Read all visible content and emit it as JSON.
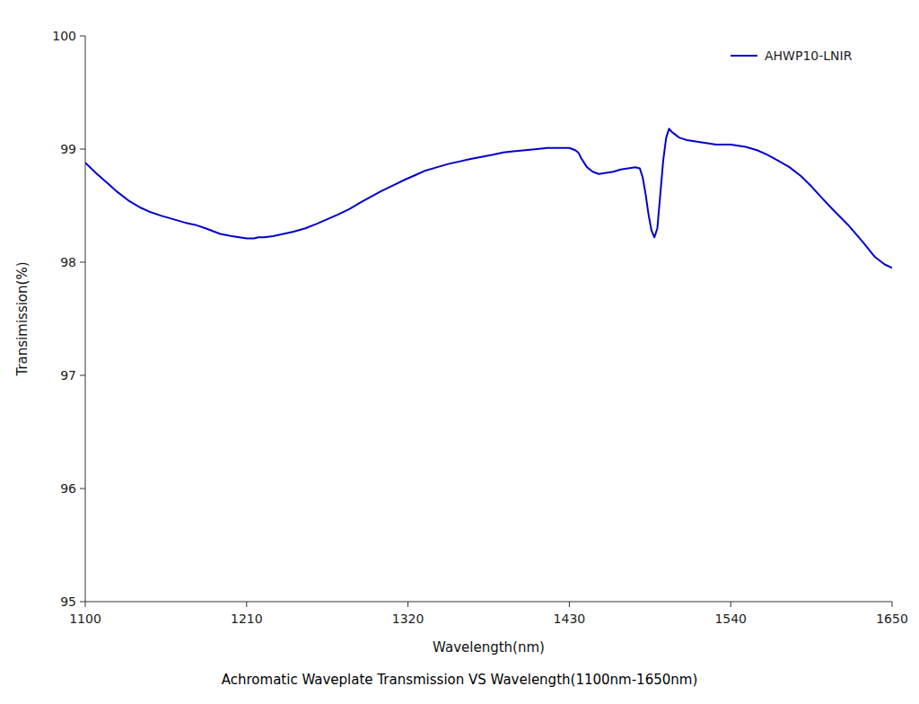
{
  "chart_data": {
    "type": "line",
    "title": "Achromatic Waveplate Transmission VS Wavelength(1100nm-1650nm)",
    "xlabel": "Wavelength(nm)",
    "ylabel": "Transimission(%)",
    "x": [
      1100,
      1108,
      1115,
      1122,
      1130,
      1138,
      1145,
      1152,
      1160,
      1168,
      1175,
      1182,
      1188,
      1192,
      1196,
      1200,
      1205,
      1210,
      1215,
      1218,
      1222,
      1228,
      1235,
      1242,
      1250,
      1258,
      1265,
      1272,
      1280,
      1288,
      1295,
      1302,
      1310,
      1318,
      1325,
      1332,
      1340,
      1348,
      1355,
      1362,
      1370,
      1378,
      1385,
      1392,
      1400,
      1408,
      1415,
      1420,
      1425,
      1428,
      1430,
      1432,
      1434,
      1435,
      1436,
      1437,
      1438,
      1440,
      1442,
      1444,
      1446,
      1448,
      1450,
      1455,
      1460,
      1465,
      1470,
      1475,
      1478,
      1480,
      1482,
      1484,
      1486,
      1488,
      1490,
      1492,
      1494,
      1496,
      1498,
      1500,
      1505,
      1510,
      1515,
      1520,
      1525,
      1530,
      1535,
      1540,
      1545,
      1550,
      1558,
      1565,
      1572,
      1580,
      1588,
      1595,
      1602,
      1610,
      1620,
      1630,
      1638,
      1645,
      1650
    ],
    "series": [
      {
        "name": "AHWP10-LNIR",
        "color": "#0000CC",
        "values": [
          98.88,
          98.78,
          98.7,
          98.62,
          98.54,
          98.48,
          98.44,
          98.41,
          98.38,
          98.35,
          98.33,
          98.3,
          98.27,
          98.25,
          98.24,
          98.23,
          98.22,
          98.21,
          98.21,
          98.22,
          98.22,
          98.23,
          98.25,
          98.27,
          98.3,
          98.34,
          98.38,
          98.42,
          98.47,
          98.53,
          98.58,
          98.63,
          98.68,
          98.73,
          98.77,
          98.81,
          98.84,
          98.87,
          98.89,
          98.91,
          98.93,
          98.95,
          98.97,
          98.98,
          98.99,
          99.0,
          99.01,
          99.01,
          99.01,
          99.01,
          99.01,
          99.0,
          98.99,
          98.98,
          98.97,
          98.95,
          98.92,
          98.88,
          98.84,
          98.82,
          98.8,
          98.79,
          98.78,
          98.79,
          98.8,
          98.82,
          98.83,
          98.84,
          98.83,
          98.75,
          98.6,
          98.42,
          98.28,
          98.22,
          98.3,
          98.6,
          98.9,
          99.1,
          99.18,
          99.15,
          99.1,
          99.08,
          99.07,
          99.06,
          99.05,
          99.04,
          99.04,
          99.04,
          99.03,
          99.02,
          98.99,
          98.95,
          98.9,
          98.84,
          98.76,
          98.67,
          98.57,
          98.46,
          98.33,
          98.18,
          98.05,
          97.98,
          97.95
        ]
      }
    ],
    "xlim": [
      1100,
      1650
    ],
    "ylim": [
      95,
      100
    ],
    "xticks": [
      1100,
      1210,
      1320,
      1430,
      1540,
      1650
    ],
    "yticks": [
      95,
      96,
      97,
      98,
      99,
      100
    ],
    "legend": "upper right",
    "grid": false
  }
}
